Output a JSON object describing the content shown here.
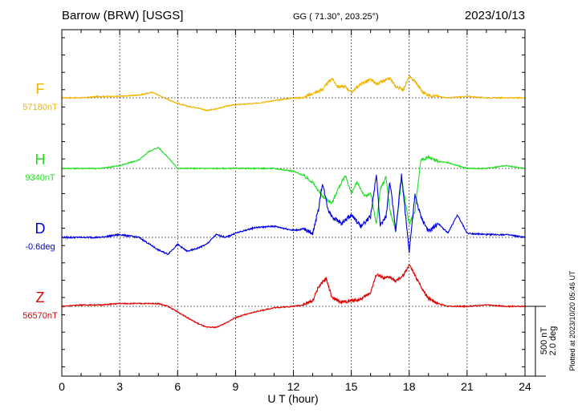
{
  "header": {
    "station": "Barrow (BRW)  [USGS]",
    "coords": "GG ( 71.30°, 203.25°)",
    "date": "2023/10/13"
  },
  "plotted_stamp": "Plotted at 2023/10/20 05:46 UT",
  "scale_bar": {
    "nT_label": "500 nT",
    "deg_label": "2.0 deg"
  },
  "chart_data": {
    "type": "line",
    "xlabel": "U T (hour)",
    "xlim": [
      0,
      24
    ],
    "x_ticks": [
      0,
      3,
      6,
      9,
      12,
      15,
      18,
      21,
      24
    ],
    "x_tick_labels": [
      "0",
      "3",
      "6",
      "9",
      "12",
      "15",
      "18",
      "21",
      "24"
    ],
    "grid": true,
    "grid_style": "dotted",
    "series": [
      {
        "name": "F",
        "baseline_label": "57180nT",
        "color": "#f0b400",
        "units": "nT offset from baseline",
        "x": [
          0,
          1,
          2,
          3,
          4,
          4.7,
          5.3,
          6,
          6.5,
          7,
          7.5,
          8,
          8.5,
          9,
          10,
          11,
          12,
          12.5,
          13,
          13.5,
          14,
          14.3,
          14.7,
          15,
          15.5,
          16,
          16.3,
          16.7,
          17,
          17.3,
          17.7,
          18,
          18.3,
          18.7,
          19,
          19.5,
          20,
          21,
          22,
          23,
          24
        ],
        "y": [
          0,
          0,
          10,
          10,
          20,
          40,
          0,
          -40,
          -60,
          -70,
          -90,
          -80,
          -60,
          -50,
          -40,
          -20,
          0,
          0,
          30,
          60,
          140,
          80,
          80,
          40,
          100,
          130,
          100,
          120,
          140,
          80,
          60,
          150,
          120,
          40,
          20,
          10,
          0,
          10,
          0,
          0,
          0
        ]
      },
      {
        "name": "H",
        "baseline_label": "9340nT",
        "color": "#22dd22",
        "units": "nT offset from baseline",
        "x": [
          0,
          1,
          2,
          3,
          4,
          4.5,
          5,
          5.5,
          6,
          7,
          8,
          9,
          10,
          11,
          12,
          12.5,
          13,
          13.5,
          14,
          14.3,
          14.7,
          15,
          15.3,
          15.7,
          16,
          16.3,
          16.5,
          16.8,
          17,
          17.3,
          17.6,
          18,
          18.3,
          18.6,
          19,
          19.5,
          20,
          21,
          22,
          23,
          24
        ],
        "y": [
          0,
          0,
          0,
          20,
          60,
          120,
          150,
          80,
          0,
          0,
          0,
          0,
          0,
          0,
          -20,
          -50,
          -100,
          -200,
          -250,
          -150,
          -50,
          -180,
          -100,
          -200,
          -180,
          -400,
          -150,
          -60,
          -300,
          -450,
          -80,
          -400,
          -300,
          60,
          80,
          50,
          40,
          0,
          0,
          20,
          0
        ]
      },
      {
        "name": "D",
        "baseline_label": "-0.6deg",
        "color": "#0000dd",
        "units": "deg offset from baseline",
        "x": [
          0,
          1,
          2,
          3,
          4,
          5,
          5.5,
          6,
          6.5,
          7,
          7.5,
          8,
          8.5,
          9,
          10,
          11,
          12,
          12.5,
          13,
          13.3,
          13.5,
          13.8,
          14,
          14.5,
          15,
          15.5,
          16,
          16.3,
          16.5,
          16.8,
          17,
          17.3,
          17.6,
          18,
          18.3,
          18.6,
          19,
          19.5,
          20,
          20.5,
          21,
          22,
          23,
          24
        ],
        "y": [
          0,
          0,
          0,
          0.08,
          0,
          -0.36,
          -0.48,
          -0.2,
          -0.4,
          -0.32,
          -0.2,
          0.08,
          0,
          0.12,
          0.28,
          0.32,
          0.2,
          0.24,
          0.12,
          0.8,
          1.56,
          0.8,
          0.6,
          0.4,
          0.64,
          0.32,
          0.6,
          1.8,
          0.32,
          0.6,
          1.6,
          0.2,
          1.8,
          -0.4,
          1.2,
          0.6,
          0.16,
          0.4,
          0.12,
          0.64,
          0.12,
          0.08,
          0.08,
          0
        ]
      },
      {
        "name": "Z",
        "baseline_label": "56570nT",
        "color": "#dd0000",
        "units": "nT offset from baseline",
        "x": [
          0,
          1,
          2,
          3,
          4,
          5,
          5.5,
          6,
          6.5,
          7,
          7.5,
          8,
          8.5,
          9,
          10,
          11,
          12,
          12.5,
          13,
          13.3,
          13.7,
          14,
          14.5,
          15,
          15.5,
          16,
          16.3,
          16.7,
          17,
          17.3,
          17.7,
          18,
          18.3,
          18.7,
          19,
          19.5,
          20,
          21,
          22,
          23,
          24
        ],
        "y": [
          0,
          10,
          10,
          20,
          20,
          20,
          0,
          -40,
          -80,
          -120,
          -150,
          -150,
          -120,
          -80,
          -40,
          -10,
          0,
          10,
          40,
          140,
          200,
          60,
          30,
          40,
          50,
          100,
          230,
          200,
          210,
          180,
          220,
          300,
          220,
          120,
          60,
          20,
          0,
          0,
          10,
          0,
          0
        ]
      }
    ]
  }
}
